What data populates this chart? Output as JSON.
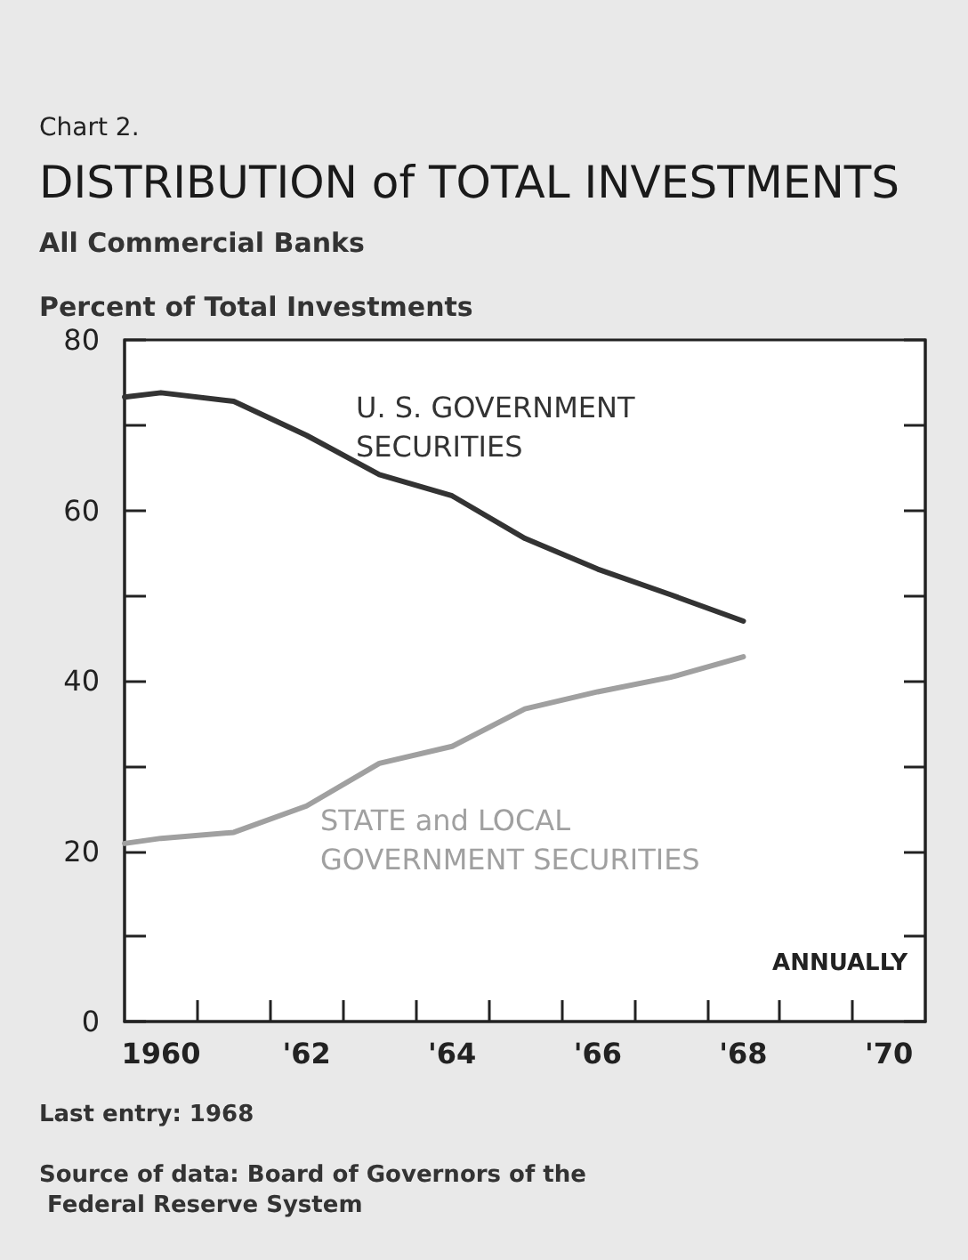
{
  "chart_data": {
    "type": "line",
    "title": "DISTRIBUTION of TOTAL INVESTMENTS",
    "subtitle": "All Commercial Banks",
    "ylabel": "Percent of Total Investments",
    "annotations": [
      "Chart 2.",
      "ANNUALLY",
      "Last entry: 1968",
      "Source of data: Board of Governors of the Federal Reserve System"
    ],
    "series": [
      {
        "name": "U. S. GOVERNMENT SECURITIES",
        "color": "#333333",
        "x": [
          1959.5,
          1960,
          1961,
          1962,
          1963,
          1964,
          1965,
          1966,
          1967,
          1968
        ],
        "values": [
          73.3,
          73.8,
          72.8,
          68.8,
          64.2,
          61.7,
          56.7,
          53.1,
          50.1,
          47.0
        ]
      },
      {
        "name": "STATE and LOCAL GOVERNMENT SECURITIES",
        "color": "#a0a0a0",
        "x": [
          1959.5,
          1960,
          1961,
          1962,
          1963,
          1964,
          1965,
          1966,
          1967,
          1968
        ],
        "values": [
          20.9,
          21.5,
          22.2,
          25.3,
          30.3,
          32.3,
          36.7,
          38.7,
          40.4,
          42.8
        ]
      }
    ],
    "xlim": [
      1959.5,
      1970.5
    ],
    "xticks": [
      {
        "value": 1960,
        "label": "1960"
      },
      {
        "value": 1960.5,
        "label": null
      },
      {
        "value": 1961.5,
        "label": null
      },
      {
        "value": 1962,
        "label": "'62"
      },
      {
        "value": 1962.5,
        "label": null
      },
      {
        "value": 1963.5,
        "label": null
      },
      {
        "value": 1964,
        "label": "'64"
      },
      {
        "value": 1964.5,
        "label": null
      },
      {
        "value": 1965.5,
        "label": null
      },
      {
        "value": 1966,
        "label": "'66"
      },
      {
        "value": 1966.5,
        "label": null
      },
      {
        "value": 1967.5,
        "label": null
      },
      {
        "value": 1968,
        "label": "'68"
      },
      {
        "value": 1968.5,
        "label": null
      },
      {
        "value": 1969.5,
        "label": null
      },
      {
        "value": 1970,
        "label": "'70"
      }
    ],
    "ylim": [
      0,
      80
    ],
    "yticks": [
      0,
      {
        "value": 10,
        "label": null
      },
      20,
      {
        "value": 30,
        "label": null
      },
      40,
      {
        "value": 50,
        "label": null
      },
      60,
      {
        "value": 70,
        "label": null
      },
      80
    ],
    "grid": false,
    "legend": false,
    "marker": "none",
    "line_style": "solid"
  }
}
